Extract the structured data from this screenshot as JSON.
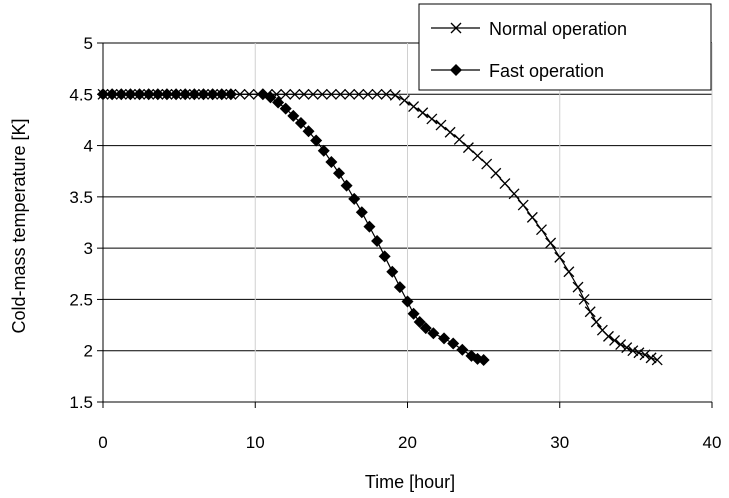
{
  "chart_data": {
    "type": "line",
    "xlabel": "Time [hour]",
    "ylabel": "Cold-mass temperature [K]",
    "xlim": [
      0,
      40
    ],
    "ylim": [
      1.5,
      5
    ],
    "x_ticks": [
      "0",
      "10",
      "20",
      "30",
      "40"
    ],
    "y_ticks": [
      "1.5",
      "2",
      "2.5",
      "3",
      "3.5",
      "4",
      "4.5",
      "5"
    ],
    "grid": "horizontal and vertical gridlines at major ticks",
    "legend_position": "top-right",
    "series": [
      {
        "name": "Normal operation",
        "marker": "x",
        "color": "#000000",
        "points": [
          [
            0,
            4.5
          ],
          [
            0.6,
            4.5
          ],
          [
            1.2,
            4.5
          ],
          [
            1.8,
            4.5
          ],
          [
            2.4,
            4.5
          ],
          [
            3.0,
            4.5
          ],
          [
            3.6,
            4.5
          ],
          [
            4.2,
            4.5
          ],
          [
            4.8,
            4.5
          ],
          [
            5.4,
            4.5
          ],
          [
            6.0,
            4.5
          ],
          [
            6.6,
            4.5
          ],
          [
            7.2,
            4.5
          ],
          [
            7.8,
            4.5
          ],
          [
            8.4,
            4.5
          ],
          [
            9.0,
            4.5
          ],
          [
            9.6,
            4.5
          ],
          [
            10.2,
            4.5
          ],
          [
            10.8,
            4.5
          ],
          [
            11.4,
            4.5
          ],
          [
            12.0,
            4.5
          ],
          [
            12.6,
            4.5
          ],
          [
            13.2,
            4.5
          ],
          [
            13.8,
            4.5
          ],
          [
            14.4,
            4.5
          ],
          [
            15.0,
            4.5
          ],
          [
            15.6,
            4.5
          ],
          [
            16.2,
            4.5
          ],
          [
            16.8,
            4.5
          ],
          [
            17.4,
            4.5
          ],
          [
            18.0,
            4.5
          ],
          [
            18.6,
            4.5
          ],
          [
            19.2,
            4.49
          ],
          [
            19.8,
            4.44
          ],
          [
            20.4,
            4.38
          ],
          [
            21.0,
            4.32
          ],
          [
            21.6,
            4.26
          ],
          [
            22.2,
            4.2
          ],
          [
            22.8,
            4.13
          ],
          [
            23.4,
            4.06
          ],
          [
            24.0,
            3.98
          ],
          [
            24.6,
            3.9
          ],
          [
            25.2,
            3.82
          ],
          [
            25.8,
            3.73
          ],
          [
            26.4,
            3.63
          ],
          [
            27.0,
            3.53
          ],
          [
            27.6,
            3.42
          ],
          [
            28.2,
            3.3
          ],
          [
            28.8,
            3.18
          ],
          [
            29.4,
            3.05
          ],
          [
            30.0,
            2.91
          ],
          [
            30.6,
            2.77
          ],
          [
            31.2,
            2.62
          ],
          [
            31.6,
            2.5
          ],
          [
            32.0,
            2.38
          ],
          [
            32.4,
            2.28
          ],
          [
            32.8,
            2.2
          ],
          [
            33.2,
            2.14
          ],
          [
            33.6,
            2.1
          ],
          [
            34.0,
            2.06
          ],
          [
            34.4,
            2.03
          ],
          [
            34.8,
            2.0
          ],
          [
            35.2,
            1.98
          ],
          [
            35.6,
            1.96
          ],
          [
            36.0,
            1.93
          ],
          [
            36.4,
            1.91
          ]
        ]
      },
      {
        "name": "Fast operation",
        "marker": "diamond",
        "color": "#000000",
        "points": [
          [
            0,
            4.5
          ],
          [
            0.6,
            4.5
          ],
          [
            1.2,
            4.5
          ],
          [
            1.8,
            4.5
          ],
          [
            2.4,
            4.5
          ],
          [
            3.0,
            4.5
          ],
          [
            3.6,
            4.5
          ],
          [
            4.2,
            4.5
          ],
          [
            4.8,
            4.5
          ],
          [
            5.4,
            4.5
          ],
          [
            6.0,
            4.5
          ],
          [
            6.6,
            4.5
          ],
          [
            7.2,
            4.5
          ],
          [
            7.8,
            4.5
          ],
          [
            8.4,
            4.5
          ],
          [
            10.5,
            4.5
          ],
          [
            11.0,
            4.47
          ],
          [
            11.5,
            4.42
          ],
          [
            12.0,
            4.36
          ],
          [
            12.5,
            4.29
          ],
          [
            13.0,
            4.22
          ],
          [
            13.5,
            4.14
          ],
          [
            14.0,
            4.05
          ],
          [
            14.5,
            3.95
          ],
          [
            15.0,
            3.84
          ],
          [
            15.5,
            3.73
          ],
          [
            16.0,
            3.61
          ],
          [
            16.5,
            3.48
          ],
          [
            17.0,
            3.35
          ],
          [
            17.5,
            3.21
          ],
          [
            18.0,
            3.07
          ],
          [
            18.5,
            2.92
          ],
          [
            19.0,
            2.77
          ],
          [
            19.5,
            2.62
          ],
          [
            20.0,
            2.48
          ],
          [
            20.4,
            2.36
          ],
          [
            20.8,
            2.28
          ],
          [
            21.2,
            2.22
          ],
          [
            21.7,
            2.17
          ],
          [
            22.4,
            2.12
          ],
          [
            23.0,
            2.07
          ],
          [
            23.6,
            2.01
          ],
          [
            24.2,
            1.95
          ],
          [
            24.6,
            1.92
          ],
          [
            25.0,
            1.91
          ]
        ]
      }
    ]
  }
}
